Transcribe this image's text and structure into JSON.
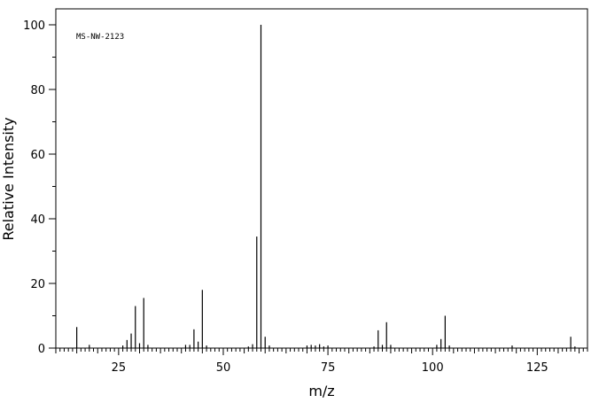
{
  "chart_data": {
    "type": "bar",
    "title": "",
    "annotation": "MS-NW-2123",
    "xlabel": "m/z",
    "ylabel": "Relative Intensity",
    "xlim": [
      10,
      137
    ],
    "ylim": [
      0,
      100
    ],
    "x_ticks": [
      25,
      50,
      75,
      100,
      125
    ],
    "y_ticks": [
      0,
      20,
      40,
      60,
      80,
      100
    ],
    "grid": false,
    "series": [
      {
        "x": [
          15,
          18,
          26,
          27,
          28,
          29,
          30,
          31,
          32,
          41,
          42,
          43,
          44,
          45,
          46,
          56,
          57,
          58,
          59,
          60,
          61,
          70,
          71,
          72,
          73,
          74,
          75,
          86,
          87,
          88,
          89,
          90,
          101,
          102,
          103,
          104,
          119,
          133,
          134
        ],
        "values": [
          6.5,
          1,
          0.8,
          2.5,
          4.5,
          13,
          1.5,
          15.5,
          1,
          1,
          1,
          5.8,
          2,
          18,
          0.8,
          0.5,
          1.2,
          34.5,
          100,
          3.5,
          0.8,
          0.8,
          1,
          0.8,
          1.2,
          0.5,
          0.8,
          0.5,
          5.5,
          1,
          8,
          1,
          1,
          2.8,
          10,
          0.8,
          0.8,
          3.5,
          0.5
        ]
      }
    ]
  }
}
